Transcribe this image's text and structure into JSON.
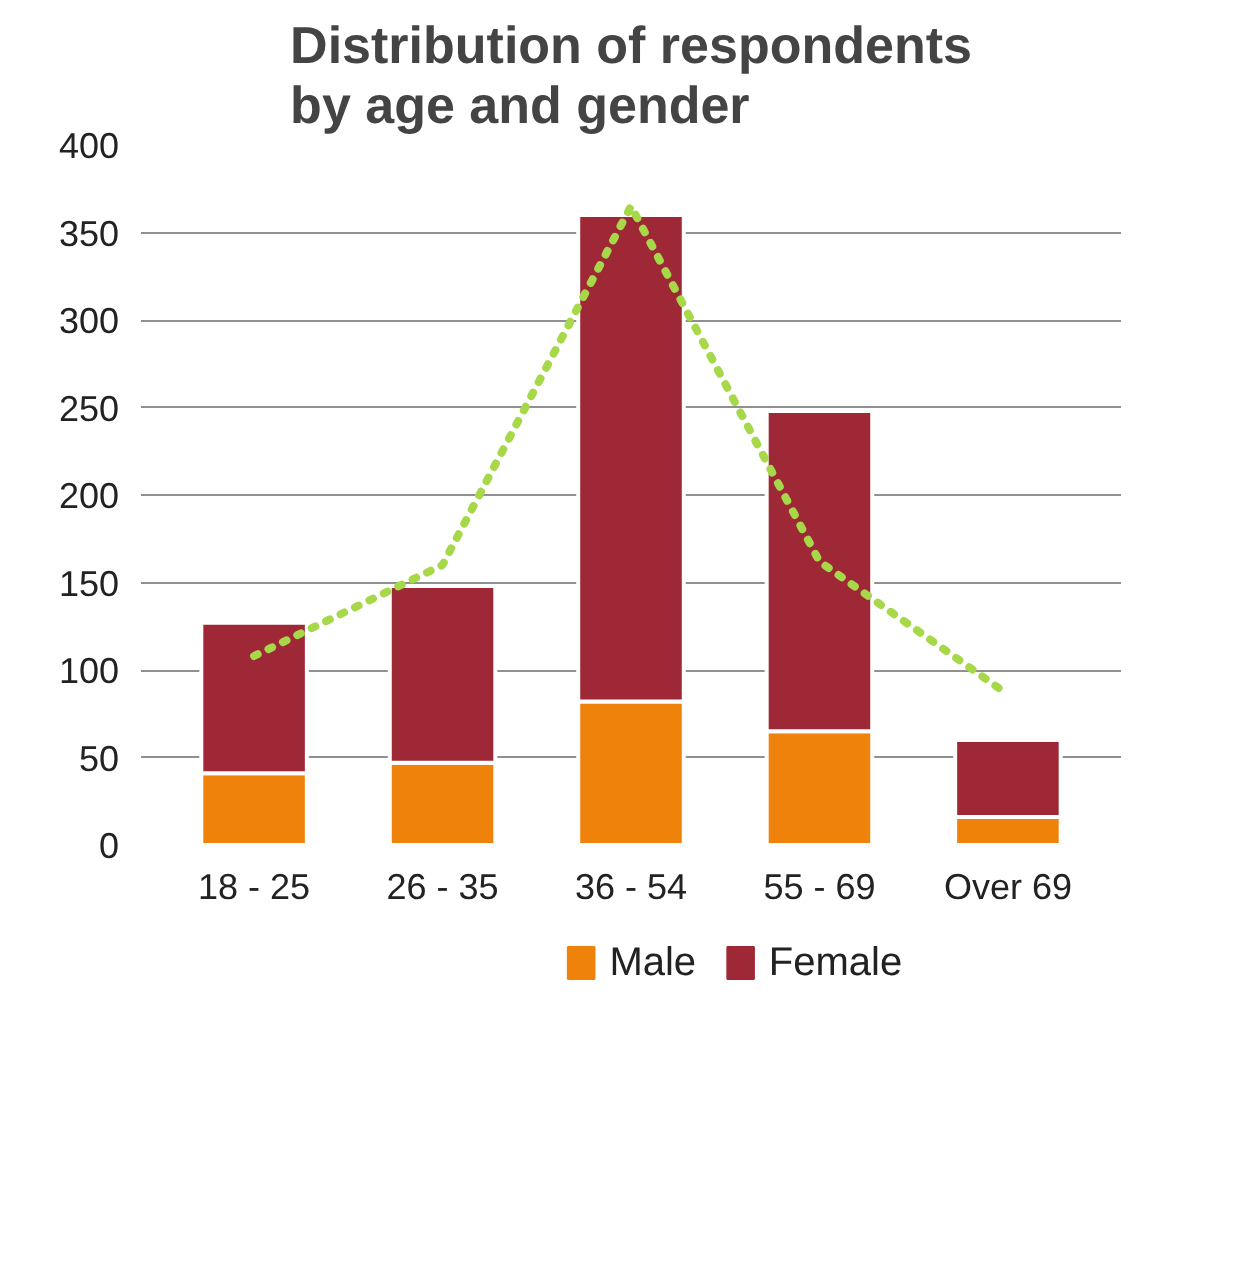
{
  "chart_data": {
    "type": "bar",
    "title": "Distribution of respondents\nby age and gender",
    "categories": [
      "18 - 25",
      "26 - 35",
      "36 - 54",
      "55 - 69",
      "Over 69"
    ],
    "stacked": true,
    "series": [
      {
        "name": "Male",
        "color": "#ee820a",
        "values": [
          41,
          47,
          82,
          65,
          16
        ]
      },
      {
        "name": "Female",
        "color": "#9e2835",
        "values": [
          86,
          101,
          278,
          183,
          44
        ]
      },
      {
        "type": "line",
        "color": "#a6d84a",
        "line_style": "dotted",
        "values": [
          108,
          160,
          365,
          162,
          86
        ]
      }
    ],
    "ylim": [
      0,
      400
    ],
    "yticks": [
      0,
      50,
      100,
      150,
      200,
      250,
      300,
      350,
      400
    ],
    "grid": "y",
    "legend": "bottom"
  }
}
